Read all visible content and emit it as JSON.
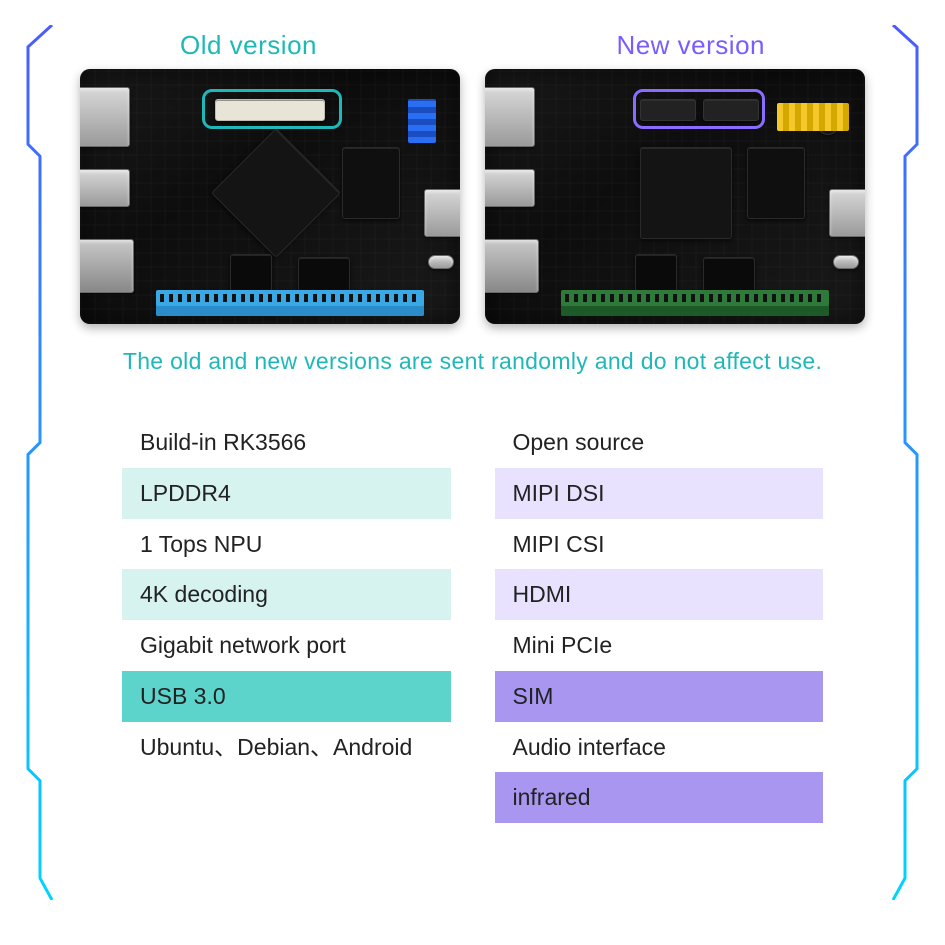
{
  "labels": {
    "old": "Old version",
    "new": "New version"
  },
  "note": "The old and new versions are sent randomly and do not affect use.",
  "colors": {
    "old_label": "#1fb8b8",
    "new_label": "#7a5cff",
    "old_highlight": "#1fb8b8",
    "new_highlight": "#8a6dff",
    "note": "#1fb8b8",
    "left_pale": "#d6f3f0",
    "left_dark": "#5cd4cc",
    "right_pale": "#e8e2ff",
    "right_dark": "#a896f0",
    "border_blue": "#4a5cff",
    "border_cyan": "#00d4ff"
  },
  "features": {
    "left": [
      {
        "text": "Build-in RK3566",
        "shade": "none"
      },
      {
        "text": "LPDDR4",
        "shade": "pale"
      },
      {
        "text": "1 Tops NPU",
        "shade": "none"
      },
      {
        "text": "4K decoding",
        "shade": "pale"
      },
      {
        "text": "Gigabit network port",
        "shade": "none"
      },
      {
        "text": "USB 3.0",
        "shade": "dark"
      },
      {
        "text": "Ubuntu、Debian、Android",
        "shade": "none"
      }
    ],
    "right": [
      {
        "text": "Open source",
        "shade": "none"
      },
      {
        "text": "MIPI DSI",
        "shade": "pale"
      },
      {
        "text": "MIPI CSI",
        "shade": "none"
      },
      {
        "text": "HDMI",
        "shade": "pale"
      },
      {
        "text": "Mini PCIe",
        "shade": "none"
      },
      {
        "text": "SIM",
        "shade": "dark"
      },
      {
        "text": "Audio interface",
        "shade": "none"
      },
      {
        "text": "infrared",
        "shade": "dark"
      }
    ]
  }
}
